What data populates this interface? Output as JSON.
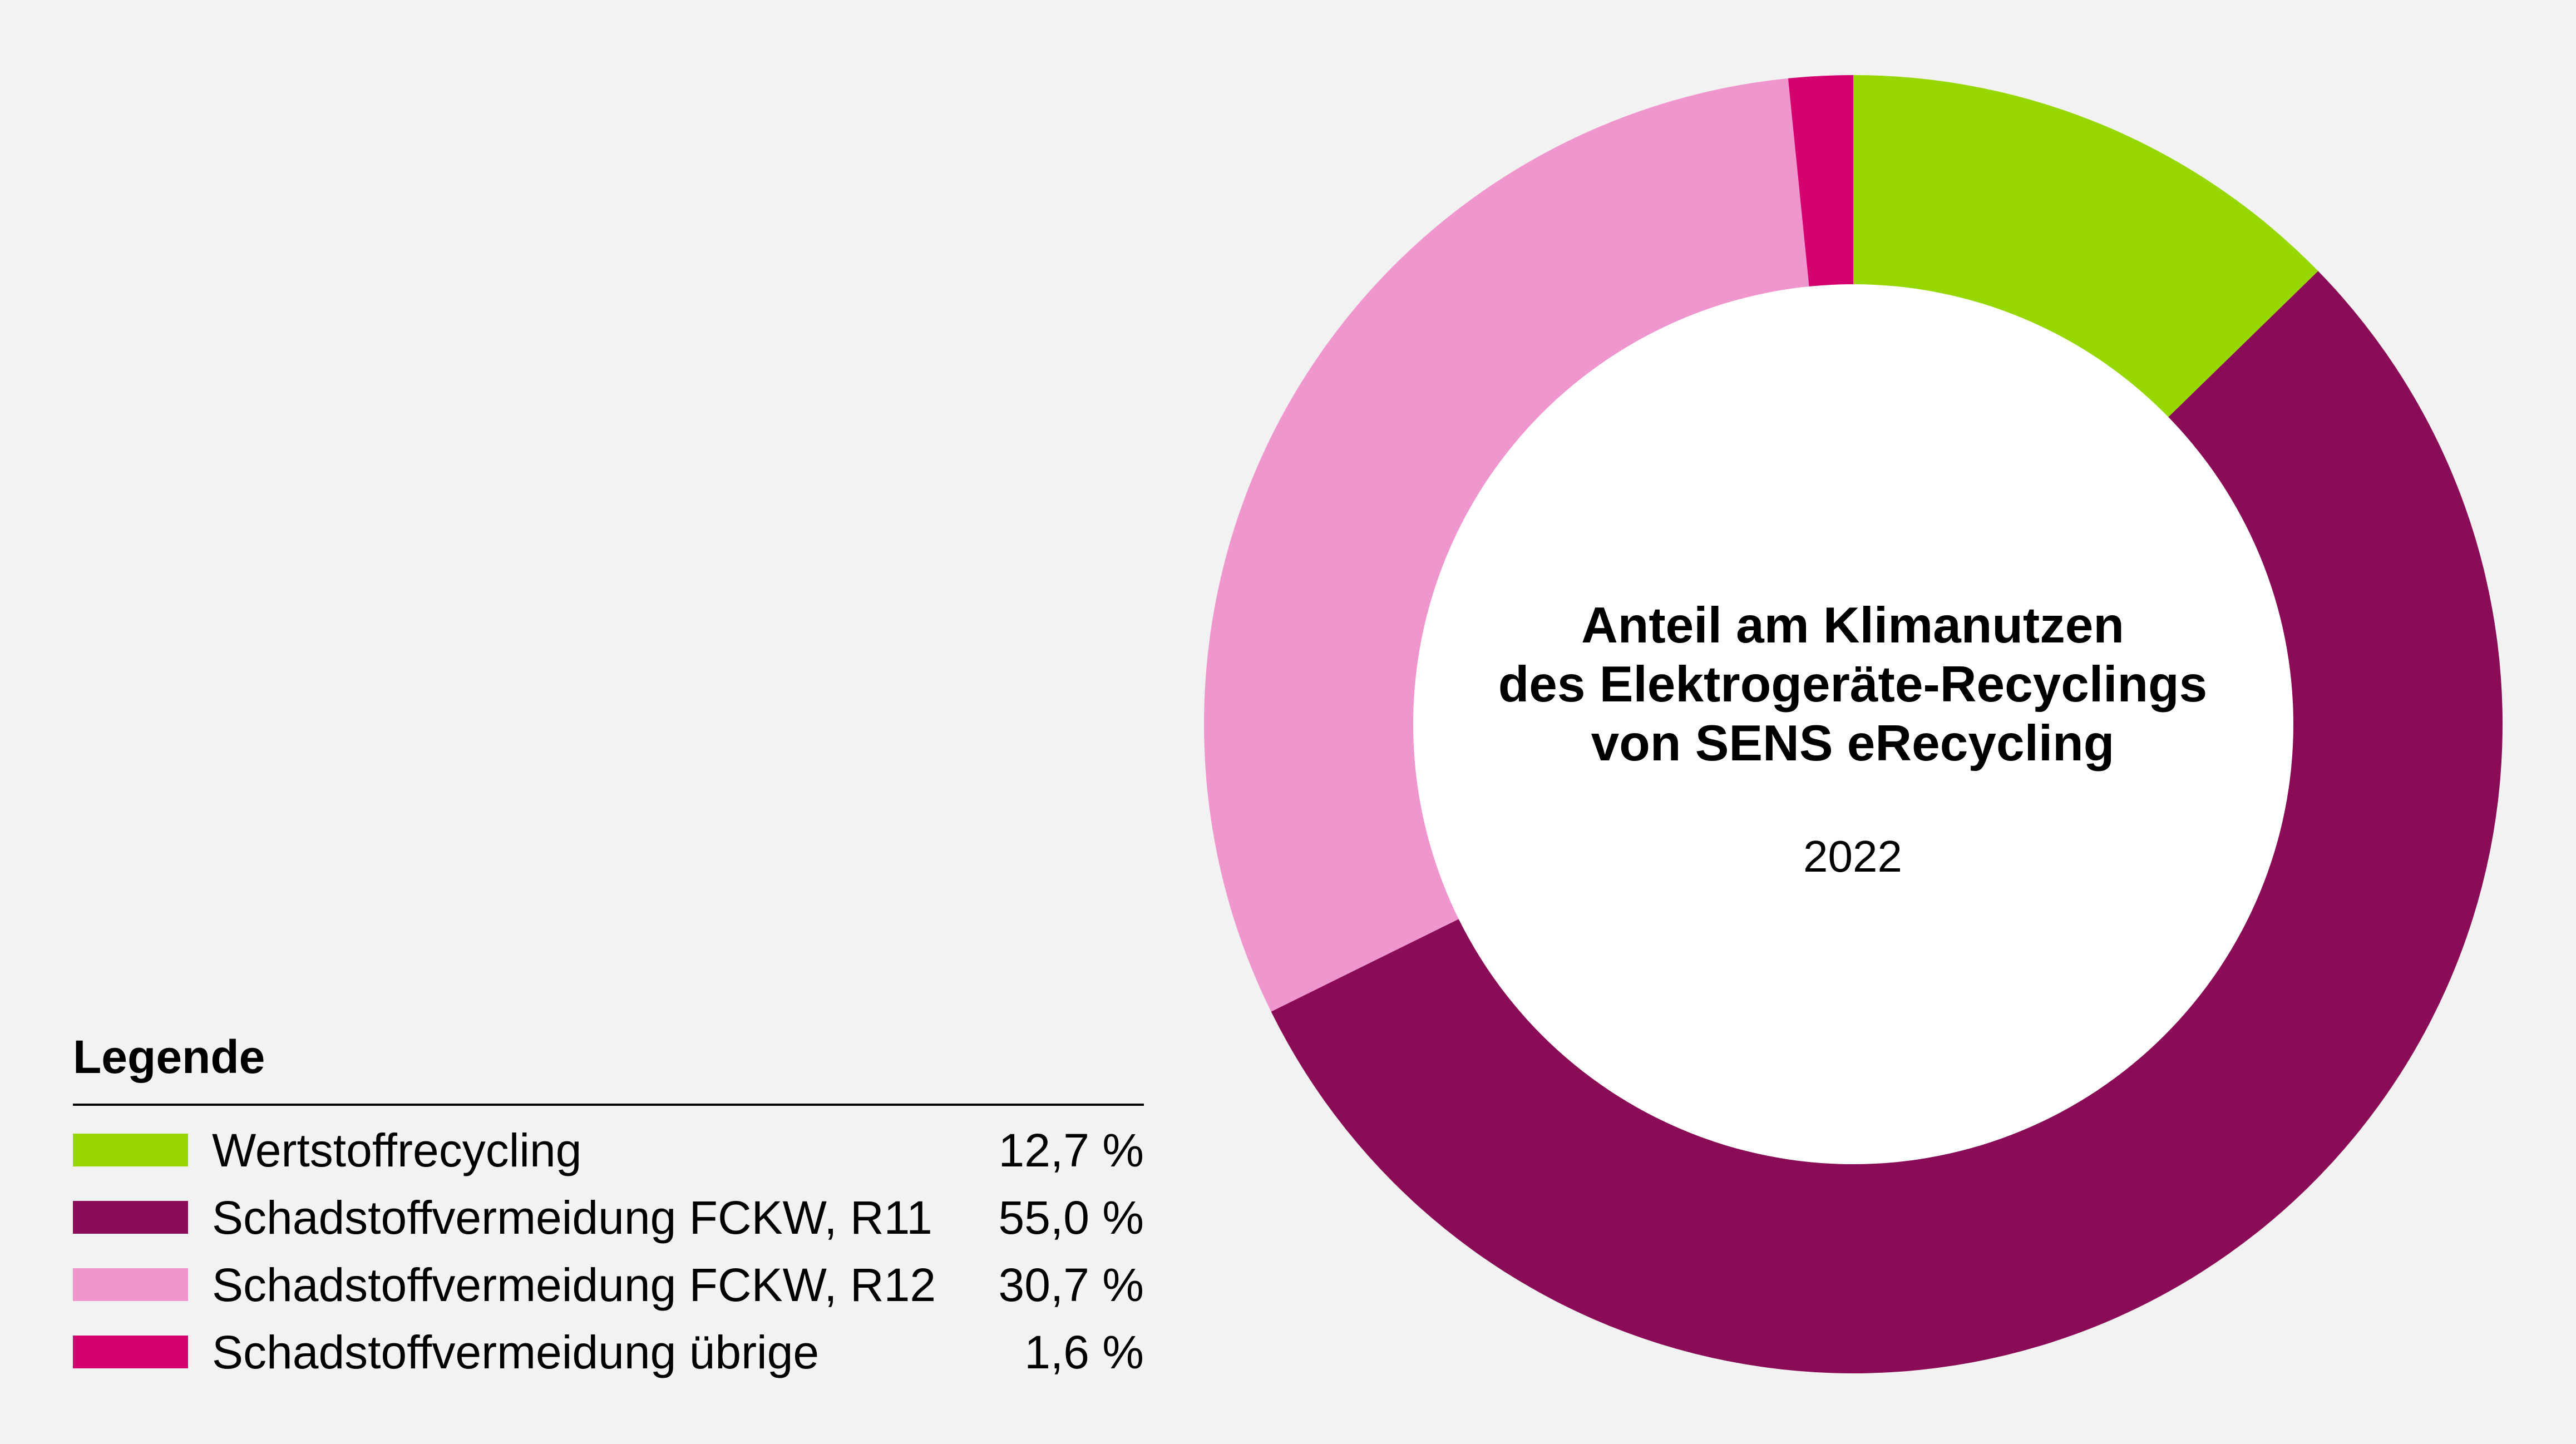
{
  "chart_data": {
    "type": "pie",
    "title_lines": [
      "Anteil am Klimanutzen",
      "des Elektrogeräte-Recyclings",
      "von SENS eRecycling"
    ],
    "subtitle": "2022",
    "legend_title": "Legende",
    "legend_position": "bottom-left",
    "unit": "%",
    "slices": [
      {
        "label": "Wertstoffrecycling",
        "value": 12.7,
        "display": "12,7 %",
        "color": "#97d700"
      },
      {
        "label": "Schadstoffvermeidung FCKW, R11",
        "value": 55.0,
        "display": "55,0 %",
        "color": "#8a0c56"
      },
      {
        "label": "Schadstoffvermeidung FCKW, R12",
        "value": 30.7,
        "display": "30,7 %",
        "color": "#f096cf"
      },
      {
        "label": "Schadstoffvermeidung übrige",
        "value": 1.6,
        "display": "1,6 %",
        "color": "#d4006f"
      }
    ]
  }
}
